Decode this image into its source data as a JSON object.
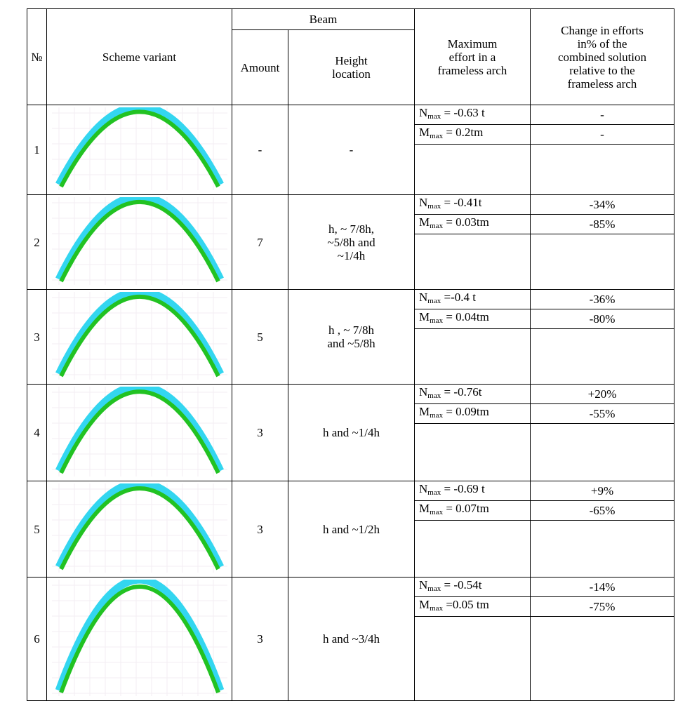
{
  "header": {
    "number": "№",
    "scheme": "Scheme variant",
    "beam": "Beam",
    "amount": "Amount",
    "height_location": [
      "Height",
      "location"
    ],
    "max_effort": [
      "Maximum",
      "effort in a",
      "frameless arch"
    ],
    "change": [
      "Change in efforts",
      "in% of the",
      "combined solution",
      "relative to the",
      "frameless arch"
    ]
  },
  "rows": [
    {
      "number": "1",
      "amount": "-",
      "height": [
        "-"
      ],
      "n": {
        "symbol": "N",
        "sub": "max",
        "value": " = -0.63 t"
      },
      "n_change": "-",
      "m": {
        "symbol": "M",
        "sub": "max",
        "value": " = 0.2tm"
      },
      "m_change": "-"
    },
    {
      "number": "2",
      "amount": "7",
      "height": [
        "h, ~ 7/8h,",
        "~5/8h and",
        "~1/4h"
      ],
      "n": {
        "symbol": "N",
        "sub": "max",
        "value": " = -0.41t"
      },
      "n_change": "-34%",
      "m": {
        "symbol": "M",
        "sub": "max",
        "value": " = 0.03tm"
      },
      "m_change": "-85%"
    },
    {
      "number": "3",
      "amount": "5",
      "height": [
        "h , ~ 7/8h",
        "and ~5/8h"
      ],
      "n": {
        "symbol": "N",
        "sub": "max",
        "value": " =-0.4 t"
      },
      "n_change": "-36%",
      "m": {
        "symbol": "M",
        "sub": "max",
        "value": " = 0.04tm"
      },
      "m_change": "-80%"
    },
    {
      "number": "4",
      "amount": "3",
      "height": [
        "h and ~1/4h"
      ],
      "n": {
        "symbol": "N",
        "sub": "max",
        "value": " = -0.76t"
      },
      "n_change": "+20%",
      "m": {
        "symbol": "M",
        "sub": "max",
        "value": " = 0.09tm"
      },
      "m_change": "-55%"
    },
    {
      "number": "5",
      "amount": "3",
      "height": [
        "h and ~1/2h"
      ],
      "n": {
        "symbol": "N",
        "sub": "max",
        "value": " = -0.69 t"
      },
      "n_change": "+9%",
      "m": {
        "symbol": "M",
        "sub": "max",
        "value": " = 0.07tm"
      },
      "m_change": "-65%"
    },
    {
      "number": "6",
      "amount": "3",
      "height": [
        "h and ~3/4h"
      ],
      "n": {
        "symbol": "N",
        "sub": "max",
        "value": " = -0.54t"
      },
      "n_change": "-14%",
      "m": {
        "symbol": "M",
        "sub": "max",
        "value": " =0.05 tm"
      },
      "m_change": "-75%"
    }
  ]
}
